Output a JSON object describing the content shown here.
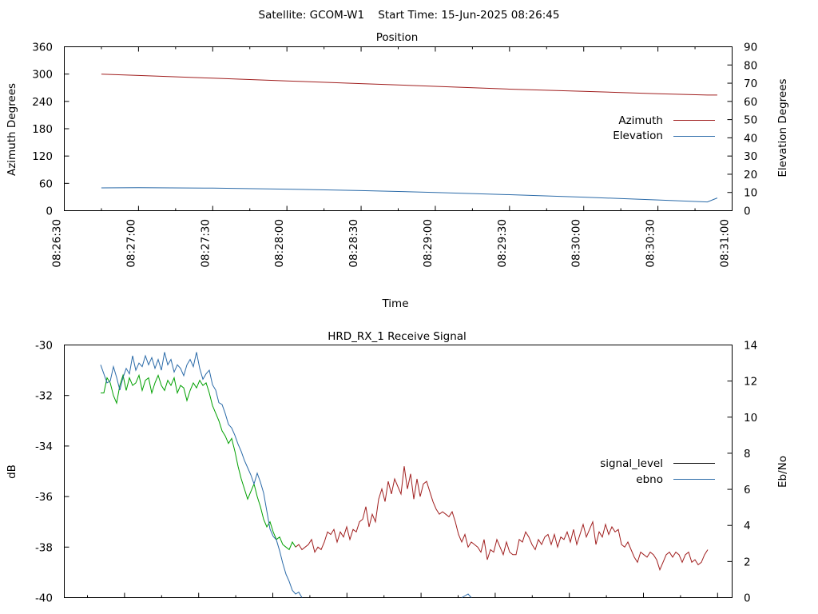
{
  "header": {
    "title": "Satellite: GCOM-W1    Start Time: 15-Jun-2025 08:26:45"
  },
  "colors": {
    "azimuth": "#a01e1e",
    "elevation": "#2a6aa8",
    "signal_level_green": "#00a000",
    "signal_level_red": "#a01e1e",
    "signal_level_legend": "#000000",
    "ebno": "#2a6aa8"
  },
  "chart_data": [
    {
      "type": "line",
      "title": "Position",
      "xlabel": "Time",
      "ylabel": "Azimuth Degrees",
      "y2label": "Elevation Degrees",
      "x_tick_labels": [
        "08:26:30",
        "08:27:00",
        "08:27:30",
        "08:28:00",
        "08:28:30",
        "08:29:00",
        "08:29:30",
        "08:30:00",
        "08:30:30",
        "08:31:00"
      ],
      "y_tick_labels": [
        "0",
        "60",
        "120",
        "180",
        "240",
        "300",
        "360"
      ],
      "y2_tick_labels": [
        "0",
        "10",
        "20",
        "30",
        "40",
        "50",
        "60",
        "70",
        "80",
        "90"
      ],
      "ylim": [
        0,
        360
      ],
      "y2lim": [
        0,
        90
      ],
      "legend_position": "right",
      "x": [
        "08:26:45",
        "08:27:00",
        "08:27:30",
        "08:28:00",
        "08:28:30",
        "08:29:00",
        "08:29:30",
        "08:30:00",
        "08:30:30",
        "08:30:50",
        "08:30:54"
      ],
      "series": [
        {
          "name": "Azimuth",
          "axis": "left",
          "color_key": "azimuth",
          "values": [
            300,
            297,
            291,
            285,
            279,
            273,
            267,
            262,
            257,
            254,
            254
          ]
        },
        {
          "name": "Elevation",
          "axis": "right",
          "color_key": "elevation",
          "values": [
            12.5,
            12.6,
            12.4,
            11.8,
            11.0,
            10.0,
            8.8,
            7.4,
            5.9,
            4.8,
            7.0
          ]
        }
      ]
    },
    {
      "type": "line",
      "title": "HRD_RX_1 Receive Signal",
      "ylabel": "dB",
      "y2label": "Eb/No",
      "y_tick_labels": [
        "-40",
        "-38",
        "-36",
        "-34",
        "-32",
        "-30"
      ],
      "y2_tick_labels": [
        "0",
        "2",
        "4",
        "6",
        "8",
        "10",
        "12",
        "14"
      ],
      "ylim": [
        -40,
        -30
      ],
      "y2lim": [
        0,
        14
      ],
      "legend_position": "right",
      "series": [
        {
          "name": "signal_level",
          "axis": "left",
          "x": [
            126,
            130,
            134,
            138,
            142,
            146,
            150,
            154,
            158,
            162,
            166,
            170,
            174,
            178,
            182,
            186,
            190,
            194,
            198,
            202,
            206,
            210,
            214,
            218,
            222,
            226,
            230,
            234,
            238,
            242,
            246,
            250,
            254,
            258,
            262,
            266,
            270,
            274,
            278,
            282,
            286,
            290,
            294,
            298,
            302,
            306,
            310,
            314,
            318,
            322,
            326,
            330,
            334,
            338,
            342,
            346,
            350,
            354,
            358,
            362,
            366,
            370,
            374,
            378,
            382,
            386,
            390,
            394,
            398,
            402,
            406,
            410,
            414,
            418,
            422,
            426,
            430,
            434,
            438,
            442,
            446,
            450,
            454,
            458,
            462,
            466,
            470,
            474,
            478,
            482,
            486,
            490,
            494,
            498,
            502,
            506,
            510,
            514,
            518,
            522,
            526,
            530,
            534,
            538,
            542,
            546,
            550,
            554,
            558,
            562,
            566,
            570,
            574,
            578,
            582,
            586,
            590,
            594,
            598,
            602,
            606,
            610,
            614,
            618,
            622,
            626,
            630,
            634,
            638,
            642,
            646,
            650,
            654,
            658,
            662,
            666,
            670,
            674,
            678,
            682,
            686,
            690,
            694,
            698,
            702,
            706,
            710,
            714,
            718,
            722,
            726,
            730,
            734,
            738,
            742,
            746,
            750,
            754,
            758,
            762,
            766,
            770,
            774,
            778,
            782,
            786,
            790,
            794,
            798,
            802,
            806,
            810,
            814,
            818,
            822,
            826,
            830,
            834,
            838,
            842,
            846,
            850,
            854,
            858,
            862,
            866,
            870,
            874,
            878,
            882,
            886
          ],
          "values": [
            -31.9,
            -31.9,
            -31.3,
            -31.5,
            -32.0,
            -32.3,
            -31.6,
            -31.2,
            -31.8,
            -31.3,
            -31.6,
            -31.5,
            -31.2,
            -31.8,
            -31.4,
            -31.3,
            -31.9,
            -31.5,
            -31.2,
            -31.6,
            -31.8,
            -31.4,
            -31.6,
            -31.3,
            -31.9,
            -31.6,
            -31.7,
            -32.2,
            -31.8,
            -31.5,
            -31.7,
            -31.4,
            -31.6,
            -31.5,
            -31.9,
            -32.4,
            -32.7,
            -33.0,
            -33.4,
            -33.6,
            -33.9,
            -33.7,
            -34.2,
            -34.8,
            -35.3,
            -35.7,
            -36.1,
            -35.8,
            -35.5,
            -36.0,
            -36.4,
            -36.9,
            -37.2,
            -37.0,
            -37.4,
            -37.7,
            -37.6,
            -37.9,
            -38.0,
            -38.1,
            -37.8,
            -38.0,
            -37.9,
            -38.1,
            -38.0,
            -37.9,
            -37.7,
            -38.2,
            -38.0,
            -38.1,
            -37.8,
            -37.4,
            -37.5,
            -37.3,
            -37.8,
            -37.4,
            -37.6,
            -37.2,
            -37.7,
            -37.3,
            -37.4,
            -37.0,
            -36.9,
            -36.4,
            -37.2,
            -36.7,
            -37.0,
            -36.1,
            -35.7,
            -36.2,
            -35.4,
            -35.9,
            -35.3,
            -35.6,
            -35.9,
            -34.8,
            -35.7,
            -35.1,
            -36.1,
            -35.3,
            -36.0,
            -35.5,
            -35.4,
            -35.8,
            -36.2,
            -36.5,
            -36.7,
            -36.6,
            -36.7,
            -36.8,
            -36.6,
            -37.0,
            -37.5,
            -37.8,
            -37.5,
            -38.0,
            -37.8,
            -37.9,
            -38.0,
            -38.2,
            -37.7,
            -38.5,
            -38.1,
            -38.2,
            -37.7,
            -38.0,
            -38.3,
            -37.8,
            -38.2,
            -38.3,
            -38.3,
            -37.7,
            -37.8,
            -37.4,
            -37.6,
            -37.9,
            -38.1,
            -37.7,
            -37.9,
            -37.6,
            -37.5,
            -37.9,
            -37.5,
            -38.0,
            -37.6,
            -37.7,
            -37.4,
            -37.8,
            -37.3,
            -37.9,
            -37.5,
            -37.1,
            -37.6,
            -37.3,
            -37.0,
            -37.9,
            -37.4,
            -37.6,
            -37.1,
            -37.5,
            -37.2,
            -37.4,
            -37.3,
            -37.9,
            -38.0,
            -37.8,
            -38.1,
            -38.4,
            -38.6,
            -38.2,
            -38.3,
            -38.4,
            -38.2,
            -38.3,
            -38.5,
            -38.9,
            -38.6,
            -38.3,
            -38.2,
            -38.4,
            -38.2,
            -38.3,
            -38.6,
            -38.3,
            -38.2,
            -38.6,
            -38.5,
            -38.7,
            -38.6,
            -38.3,
            -38.1
          ],
          "color_switch_x": 370
        },
        {
          "name": "ebno",
          "axis": "right",
          "x": [
            126,
            130,
            134,
            138,
            142,
            146,
            150,
            154,
            158,
            162,
            166,
            170,
            174,
            178,
            182,
            186,
            190,
            194,
            198,
            202,
            206,
            210,
            214,
            218,
            222,
            226,
            230,
            234,
            238,
            242,
            246,
            250,
            254,
            258,
            262,
            266,
            270,
            274,
            278,
            282,
            286,
            290,
            294,
            298,
            302,
            306,
            310,
            314,
            318,
            322,
            326,
            330,
            334,
            338,
            342,
            346,
            350,
            354,
            358,
            362,
            366,
            370,
            374,
            378
          ],
          "values": [
            12.9,
            12.4,
            11.9,
            12.0,
            12.8,
            12.2,
            11.5,
            12.2,
            12.7,
            12.4,
            13.4,
            12.6,
            13.0,
            12.8,
            13.4,
            12.9,
            13.3,
            12.7,
            13.2,
            12.6,
            13.6,
            12.9,
            13.2,
            12.5,
            12.9,
            12.7,
            12.3,
            12.9,
            13.2,
            12.8,
            13.6,
            12.7,
            12.1,
            12.4,
            12.6,
            11.8,
            11.5,
            10.8,
            10.7,
            10.2,
            9.6,
            9.4,
            9.0,
            8.5,
            8.1,
            7.6,
            7.2,
            6.8,
            6.3,
            6.9,
            6.4,
            5.8,
            4.8,
            3.8,
            3.4,
            3.2,
            2.6,
            1.9,
            1.3,
            0.9,
            0.4,
            0.2,
            0.3,
            0.0
          ]
        }
      ],
      "partial_ebno_segment": {
        "x": [
          578,
          586,
          590
        ],
        "values": [
          0.0,
          0.2,
          0.0
        ]
      }
    }
  ]
}
